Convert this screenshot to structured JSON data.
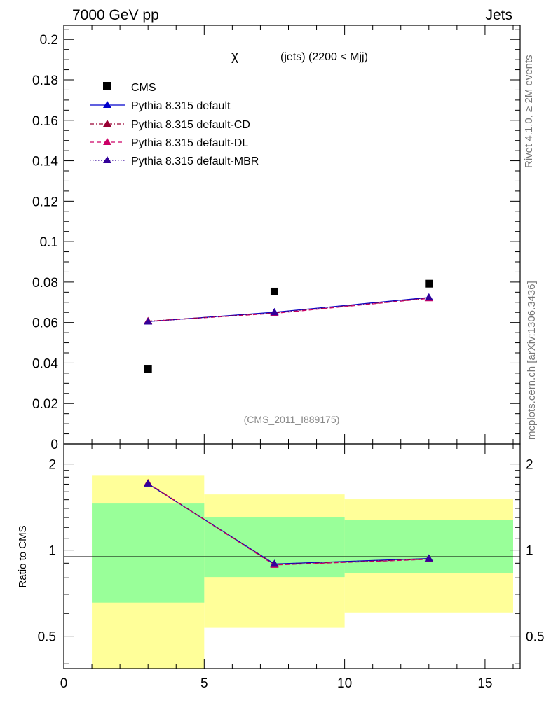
{
  "header": {
    "left": "7000 GeV pp",
    "right": "Jets"
  },
  "side_labels": {
    "rivet": "Rivet 4.1.0, ≥ 2M events",
    "source": "mcplots.cern.ch [arXiv:1306.3436]"
  },
  "main_plot": {
    "title_symbol": "χ",
    "title_text": "(jets) (2200 < Mjj)",
    "analysis_tag": "(CMS_2011_I889175)",
    "y_tick_labels": [
      "0",
      "0.02",
      "0.04",
      "0.06",
      "0.08",
      "0.1",
      "0.12",
      "0.14",
      "0.16",
      "0.18",
      "0.2"
    ]
  },
  "ratio_plot": {
    "ylabel": "Ratio to CMS",
    "y_tick_labels": [
      "0.5",
      "1",
      "2"
    ],
    "x_tick_labels": [
      "0",
      "5",
      "10",
      "15"
    ]
  },
  "legend": {
    "entries": [
      "CMS",
      "Pythia 8.315 default",
      "Pythia 8.315 default-CD",
      "Pythia 8.315 default-DL",
      "Pythia 8.315 default-MBR"
    ]
  },
  "colors": {
    "data": "#000000",
    "default": "#0000cc",
    "cd": "#990033",
    "dl": "#cc0066",
    "mbr": "#330099",
    "band_outer": "#ffff99",
    "band_inner": "#99ff99"
  },
  "chart_data": [
    {
      "type": "scatter",
      "title": "χ (jets) (2200 < Mjj)",
      "xlim": [
        0,
        16.25
      ],
      "ylim": [
        0,
        0.207
      ],
      "yticks": [
        0,
        0.02,
        0.04,
        0.06,
        0.08,
        0.1,
        0.12,
        0.14,
        0.16,
        0.18,
        0.2
      ],
      "x_bins": [
        [
          1,
          5
        ],
        [
          5,
          10
        ],
        [
          10,
          16
        ]
      ],
      "series": [
        {
          "name": "CMS",
          "x": [
            3,
            7.5,
            13
          ],
          "values": [
            0.0372,
            0.0753,
            0.0792
          ],
          "style": "marker"
        },
        {
          "name": "Pythia 8.315 default",
          "x": [
            3,
            7.5,
            13
          ],
          "values": [
            0.0605,
            0.0651,
            0.0724
          ],
          "style": "solid"
        },
        {
          "name": "Pythia 8.315 default-CD",
          "x": [
            3,
            7.5,
            13
          ],
          "values": [
            0.0607,
            0.0647,
            0.072
          ],
          "style": "dashdot"
        },
        {
          "name": "Pythia 8.315 default-DL",
          "x": [
            3,
            7.5,
            13
          ],
          "values": [
            0.0606,
            0.0645,
            0.0719
          ],
          "style": "dashed"
        },
        {
          "name": "Pythia 8.315 default-MBR",
          "x": [
            3,
            7.5,
            13
          ],
          "values": [
            0.0604,
            0.065,
            0.0723
          ],
          "style": "dotted"
        }
      ]
    },
    {
      "type": "line",
      "ylabel": "Ratio to CMS",
      "xlim": [
        0,
        16.25
      ],
      "ylim": [
        0.385,
        2.35
      ],
      "yscale": "log",
      "bands": [
        {
          "name": "outer",
          "bins": [
            [
              1,
              5
            ],
            [
              5,
              10
            ],
            [
              10,
              16
            ]
          ],
          "low": [
            0.385,
            0.535,
            0.605
          ],
          "high": [
            1.82,
            1.565,
            1.505
          ]
        },
        {
          "name": "inner",
          "bins": [
            [
              1,
              5
            ],
            [
              5,
              10
            ],
            [
              10,
              16
            ]
          ],
          "low": [
            0.655,
            0.805,
            0.83
          ],
          "high": [
            1.455,
            1.305,
            1.275
          ]
        }
      ],
      "series": [
        {
          "name": "Pythia 8.315 default",
          "x": [
            3,
            7.5,
            13
          ],
          "values": [
            1.705,
            0.895,
            0.935
          ]
        },
        {
          "name": "Pythia 8.315 default-CD",
          "x": [
            3,
            7.5,
            13
          ],
          "values": [
            1.715,
            0.89,
            0.93
          ]
        },
        {
          "name": "Pythia 8.315 default-DL",
          "x": [
            3,
            7.5,
            13
          ],
          "values": [
            1.71,
            0.887,
            0.928
          ]
        },
        {
          "name": "Pythia 8.315 default-MBR",
          "x": [
            3,
            7.5,
            13
          ],
          "values": [
            1.707,
            0.894,
            0.934
          ]
        }
      ]
    }
  ]
}
